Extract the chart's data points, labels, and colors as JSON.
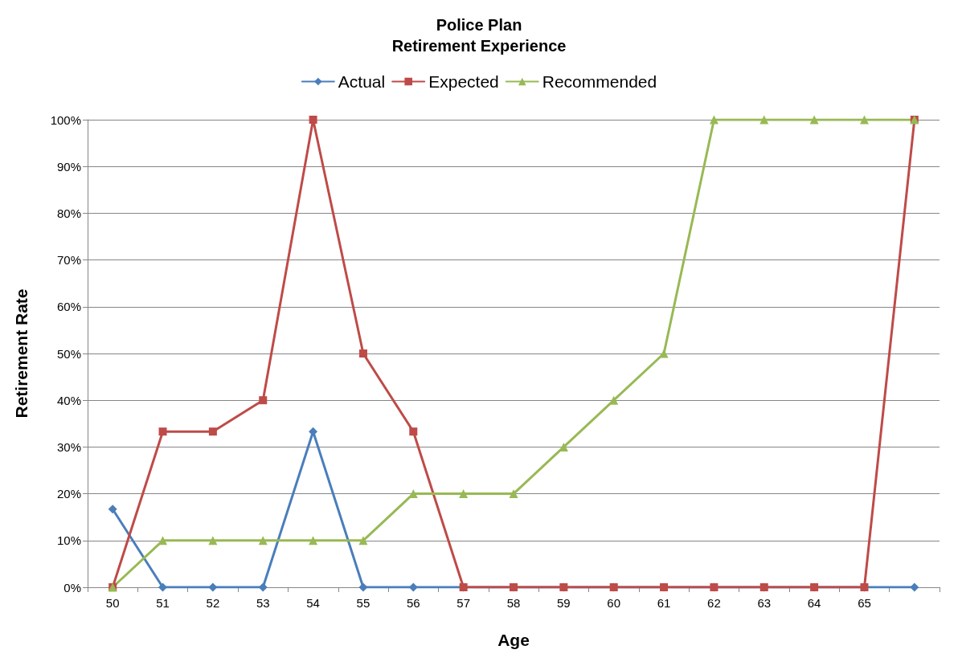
{
  "chart_data": {
    "type": "line",
    "title": "Police Plan",
    "subtitle": "Retirement Experience",
    "xlabel": "Age",
    "ylabel": "Retirement Rate",
    "categories": [
      "50",
      "51",
      "52",
      "53",
      "54",
      "55",
      "56",
      "57",
      "58",
      "59",
      "60",
      "61",
      "62",
      "63",
      "64",
      "65",
      null
    ],
    "series": [
      {
        "name": "Actual",
        "color": "#4a7ebb",
        "marker": "diamond",
        "values": [
          16.7,
          0,
          0,
          0,
          33.3,
          0,
          0,
          0,
          0,
          0,
          0,
          0,
          0,
          0,
          0,
          0,
          0
        ]
      },
      {
        "name": "Expected",
        "color": "#be4b48",
        "marker": "square",
        "values": [
          0,
          33.3,
          33.3,
          40,
          100,
          50,
          33.3,
          0,
          0,
          0,
          0,
          0,
          0,
          0,
          0,
          0,
          100
        ]
      },
      {
        "name": "Recommended",
        "color": "#98b954",
        "marker": "triangle",
        "values": [
          0,
          10,
          10,
          10,
          10,
          10,
          20,
          20,
          20,
          30,
          40,
          50,
          100,
          100,
          100,
          100,
          100
        ]
      }
    ],
    "ylim": [
      0,
      100
    ],
    "yticks": [
      {
        "value": 0,
        "label": "0%"
      },
      {
        "value": 10,
        "label": "10%"
      },
      {
        "value": 20,
        "label": "20%"
      },
      {
        "value": 30,
        "label": "30%"
      },
      {
        "value": 40,
        "label": "40%"
      },
      {
        "value": 50,
        "label": "50%"
      },
      {
        "value": 60,
        "label": "60%"
      },
      {
        "value": 70,
        "label": "70%"
      },
      {
        "value": 80,
        "label": "80%"
      },
      {
        "value": 90,
        "label": "90%"
      },
      {
        "value": 100,
        "label": "100%"
      }
    ],
    "grid": "y",
    "legend": "top",
    "line_style": "solid"
  }
}
